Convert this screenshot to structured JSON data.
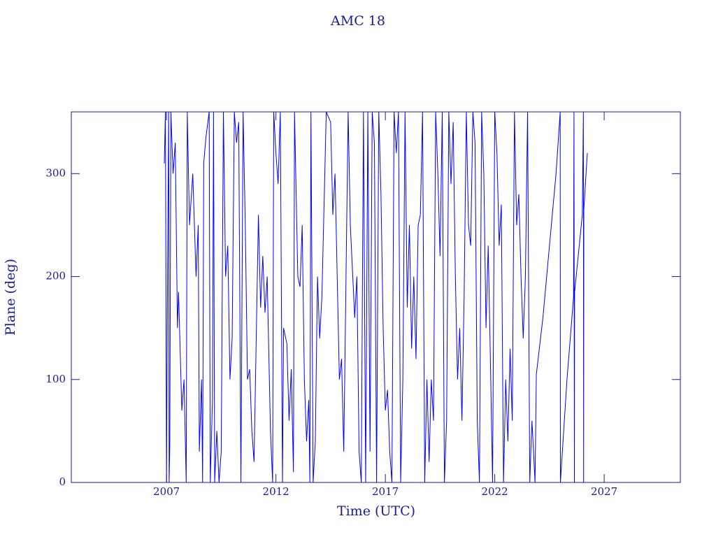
{
  "chart_data": {
    "type": "line",
    "title": "AMC 18",
    "x_label": "Time (UTC)",
    "y_label": "Plane (deg)",
    "color": "#0000ff",
    "xlim": [
      2002.65,
      2030.48
    ],
    "xticks": [
      2007,
      2012,
      2017,
      2022,
      2027
    ],
    "ylim": [
      0,
      360
    ],
    "yticks": [
      0,
      100,
      200,
      300
    ],
    "x": [
      2006.9,
      2006.95,
      2007.0,
      2007.02,
      2007.05,
      2007.1,
      2007.12,
      2007.15,
      2007.2,
      2007.3,
      2007.4,
      2007.5,
      2007.55,
      2007.7,
      2007.8,
      2007.9,
      2007.95,
      2008.05,
      2008.2,
      2008.35,
      2008.45,
      2008.5,
      2008.6,
      2008.65,
      2008.7,
      2008.8,
      2008.95,
      2009.0,
      2009.1,
      2009.15,
      2009.2,
      2009.3,
      2009.4,
      2009.5,
      2009.6,
      2009.7,
      2009.8,
      2009.9,
      2010.0,
      2010.1,
      2010.2,
      2010.3,
      2010.4,
      2010.5,
      2010.6,
      2010.7,
      2010.8,
      2010.9,
      2011.0,
      2011.2,
      2011.3,
      2011.4,
      2011.5,
      2011.6,
      2011.75,
      2011.85,
      2011.9,
      2012.0,
      2012.1,
      2012.2,
      2012.3,
      2012.35,
      2012.5,
      2012.6,
      2012.7,
      2012.8,
      2012.85,
      2013.0,
      2013.1,
      2013.2,
      2013.3,
      2013.4,
      2013.5,
      2013.55,
      2013.6,
      2013.7,
      2013.8,
      2013.9,
      2014.0,
      2014.1,
      2014.3,
      2014.5,
      2014.6,
      2014.7,
      2014.9,
      2015.0,
      2015.1,
      2015.3,
      2015.4,
      2015.6,
      2015.7,
      2015.8,
      2015.9,
      2016.0,
      2016.1,
      2016.2,
      2016.3,
      2016.4,
      2016.5,
      2016.6,
      2016.7,
      2016.8,
      2016.9,
      2017.0,
      2017.1,
      2017.2,
      2017.3,
      2017.4,
      2017.5,
      2017.6,
      2017.7,
      2017.8,
      2017.9,
      2018.0,
      2018.1,
      2018.2,
      2018.3,
      2018.4,
      2018.5,
      2018.6,
      2018.7,
      2018.8,
      2018.9,
      2019.0,
      2019.1,
      2019.2,
      2019.3,
      2019.4,
      2019.5,
      2019.6,
      2019.7,
      2019.8,
      2019.9,
      2020.0,
      2020.1,
      2020.2,
      2020.3,
      2020.4,
      2020.5,
      2020.6,
      2020.7,
      2020.8,
      2020.9,
      2021.0,
      2021.1,
      2021.2,
      2021.3,
      2021.4,
      2021.5,
      2021.6,
      2021.7,
      2021.8,
      2021.9,
      2022.0,
      2022.1,
      2022.2,
      2022.3,
      2022.4,
      2022.5,
      2022.6,
      2022.7,
      2022.8,
      2022.9,
      2023.0,
      2023.1,
      2023.2,
      2023.3,
      2023.4,
      2023.5,
      2023.6,
      2023.7,
      2023.84,
      2023.9,
      2024.2,
      2024.5,
      2024.8,
      2024.99,
      2025.0,
      2025.3,
      2025.6,
      2025.62,
      2025.64,
      2025.65,
      2026.0,
      2026.05,
      2026.06,
      2026.07,
      2026.23
    ],
    "values": [
      310,
      360,
      0,
      90,
      214,
      360,
      0,
      35,
      360,
      300,
      330,
      150,
      185,
      70,
      100,
      0,
      360,
      250,
      300,
      200,
      250,
      30,
      100,
      0,
      310,
      335,
      360,
      0,
      80,
      360,
      0,
      50,
      0,
      30,
      360,
      200,
      230,
      100,
      140,
      360,
      330,
      350,
      0,
      360,
      250,
      100,
      110,
      50,
      20,
      260,
      170,
      220,
      165,
      200,
      50,
      0,
      360,
      320,
      290,
      360,
      0,
      150,
      135,
      60,
      110,
      10,
      360,
      200,
      190,
      250,
      100,
      40,
      80,
      0,
      360,
      0,
      40,
      200,
      140,
      180,
      360,
      350,
      260,
      300,
      100,
      120,
      30,
      360,
      250,
      160,
      200,
      30,
      0,
      360,
      0,
      360,
      30,
      360,
      330,
      0,
      360,
      280,
      150,
      70,
      90,
      30,
      0,
      360,
      320,
      360,
      0,
      100,
      360,
      170,
      250,
      130,
      200,
      120,
      250,
      260,
      360,
      0,
      100,
      20,
      100,
      60,
      360,
      300,
      220,
      360,
      0,
      60,
      360,
      290,
      350,
      200,
      100,
      150,
      60,
      180,
      360,
      250,
      230,
      360,
      330,
      60,
      0,
      360,
      300,
      150,
      230,
      120,
      0,
      360,
      320,
      230,
      270,
      0,
      100,
      40,
      130,
      60,
      360,
      250,
      280,
      200,
      140,
      200,
      360,
      0,
      60,
      0,
      105,
      160,
      230,
      300,
      360,
      0,
      100,
      180,
      360,
      0,
      185,
      260,
      360,
      0,
      265,
      320
    ]
  }
}
